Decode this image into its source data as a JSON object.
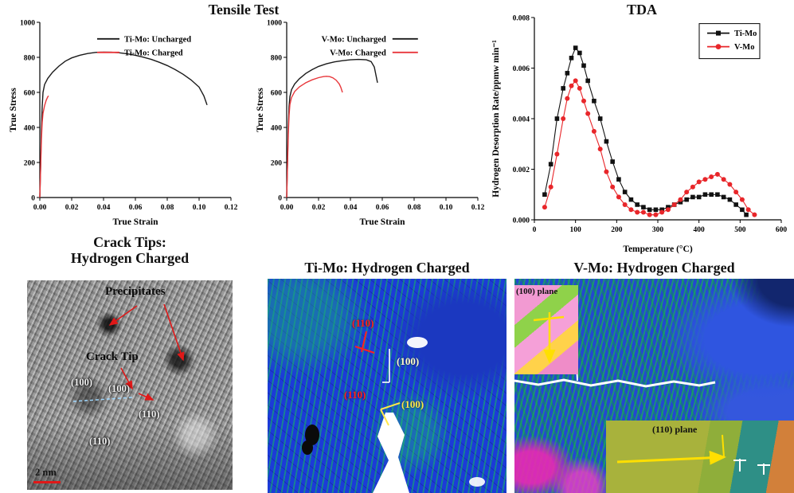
{
  "titles": {
    "tensile": "Tensile Test",
    "tda": "TDA",
    "tem_line1": "Crack Tips:",
    "tem_line2": "Hydrogen Charged",
    "timo": "Ti-Mo: Hydrogen Charged",
    "vmo": "V-Mo: Hydrogen Charged"
  },
  "panels": {
    "tem": {
      "labels": {
        "precipitates": "Precipitates",
        "crack_tip": "Crack Tip",
        "plane_100a": "(100)",
        "plane_100b": "(100)",
        "plane_110a": "(110)",
        "plane_110b": "(110)",
        "scale": "2 nm"
      }
    },
    "timo": {
      "labels": {
        "l1": "(110)",
        "l2": "(100)",
        "l3": "(110)",
        "l4": "(100)"
      }
    },
    "vmo": {
      "labels": {
        "inset1": "(100) plane",
        "inset2": "(110) plane"
      }
    }
  },
  "colors": {
    "black_series": "#1a1a1a",
    "red_series": "#e8373b",
    "tda_red": "#e8262a",
    "annotation_red": "#e01818",
    "annotation_yellow": "#ffe000"
  },
  "chart_data": [
    {
      "id": "tensile-timo",
      "type": "line",
      "xlabel": "True Strain",
      "ylabel": "True Stress",
      "xlim": [
        0,
        0.12
      ],
      "ylim": [
        0,
        1000
      ],
      "xticks": [
        0,
        0.02,
        0.04,
        0.06,
        0.08,
        0.1,
        0.12
      ],
      "xtick_labels": [
        "0.00",
        "0.02",
        "0.04",
        "0.06",
        "0.08",
        "0.10",
        "0.12"
      ],
      "yticks": [
        0,
        200,
        400,
        600,
        800,
        1000
      ],
      "ytick_labels": [
        "0",
        "200",
        "400",
        "600",
        "800",
        "1000"
      ],
      "grid": false,
      "legend_position": "top-center",
      "series": [
        {
          "name": "Ti-Mo: Uncharged",
          "color": "#1a1a1a",
          "marker": "none",
          "points": [
            [
              0,
              0
            ],
            [
              0.0005,
              180
            ],
            [
              0.001,
              380
            ],
            [
              0.0015,
              520
            ],
            [
              0.002,
              600
            ],
            [
              0.003,
              645
            ],
            [
              0.005,
              680
            ],
            [
              0.008,
              715
            ],
            [
              0.012,
              750
            ],
            [
              0.016,
              778
            ],
            [
              0.02,
              797
            ],
            [
              0.025,
              812
            ],
            [
              0.03,
              822
            ],
            [
              0.035,
              828
            ],
            [
              0.04,
              830
            ],
            [
              0.045,
              829
            ],
            [
              0.05,
              826
            ],
            [
              0.055,
              820
            ],
            [
              0.06,
              812
            ],
            [
              0.065,
              801
            ],
            [
              0.07,
              788
            ],
            [
              0.075,
              772
            ],
            [
              0.08,
              753
            ],
            [
              0.085,
              730
            ],
            [
              0.09,
              703
            ],
            [
              0.095,
              671
            ],
            [
              0.1,
              630
            ],
            [
              0.103,
              580
            ],
            [
              0.105,
              528
            ]
          ]
        },
        {
          "name": "Ti-Mo: Charged",
          "color": "#e8373b",
          "marker": "none",
          "points": [
            [
              0,
              0
            ],
            [
              0.0005,
              160
            ],
            [
              0.001,
              330
            ],
            [
              0.0015,
              430
            ],
            [
              0.002,
              480
            ],
            [
              0.003,
              525
            ],
            [
              0.004,
              555
            ],
            [
              0.005,
              575
            ],
            [
              0.0055,
              580
            ]
          ]
        }
      ]
    },
    {
      "id": "tensile-vmo",
      "type": "line",
      "xlabel": "True Strain",
      "ylabel": "True Stress",
      "xlim": [
        0,
        0.12
      ],
      "ylim": [
        0,
        1000
      ],
      "xticks": [
        0,
        0.02,
        0.04,
        0.06,
        0.08,
        0.1,
        0.12
      ],
      "xtick_labels": [
        "0.00",
        "0.02",
        "0.04",
        "0.06",
        "0.08",
        "0.10",
        "0.12"
      ],
      "yticks": [
        0,
        200,
        400,
        600,
        800,
        1000
      ],
      "ytick_labels": [
        "0",
        "200",
        "400",
        "600",
        "800",
        "1000"
      ],
      "grid": false,
      "legend_position": "top-center",
      "series": [
        {
          "name": "V-Mo: Uncharged",
          "color": "#1a1a1a",
          "marker": "none",
          "points": [
            [
              0,
              0
            ],
            [
              0.0005,
              200
            ],
            [
              0.001,
              400
            ],
            [
              0.0015,
              520
            ],
            [
              0.002,
              575
            ],
            [
              0.003,
              615
            ],
            [
              0.005,
              648
            ],
            [
              0.008,
              678
            ],
            [
              0.012,
              708
            ],
            [
              0.016,
              730
            ],
            [
              0.02,
              748
            ],
            [
              0.025,
              763
            ],
            [
              0.03,
              774
            ],
            [
              0.035,
              781
            ],
            [
              0.04,
              786
            ],
            [
              0.045,
              788
            ],
            [
              0.05,
              786
            ],
            [
              0.053,
              776
            ],
            [
              0.055,
              745
            ],
            [
              0.056,
              700
            ],
            [
              0.057,
              655
            ]
          ]
        },
        {
          "name": "V-Mo: Charged",
          "color": "#e8373b",
          "marker": "none",
          "points": [
            [
              0,
              0
            ],
            [
              0.0005,
              180
            ],
            [
              0.001,
              360
            ],
            [
              0.0015,
              470
            ],
            [
              0.002,
              530
            ],
            [
              0.003,
              570
            ],
            [
              0.005,
              605
            ],
            [
              0.008,
              632
            ],
            [
              0.012,
              655
            ],
            [
              0.016,
              672
            ],
            [
              0.02,
              684
            ],
            [
              0.023,
              690
            ],
            [
              0.025,
              692
            ],
            [
              0.027,
              690
            ],
            [
              0.029,
              683
            ],
            [
              0.031,
              670
            ],
            [
              0.033,
              648
            ],
            [
              0.034,
              628
            ],
            [
              0.035,
              600
            ]
          ]
        }
      ]
    },
    {
      "id": "tda",
      "type": "line",
      "xlabel": "Temperature (°C)",
      "ylabel": "Hydrogen Desorption Rate/ppmw min⁻¹",
      "xlim": [
        0,
        600
      ],
      "ylim": [
        0,
        0.008
      ],
      "xticks": [
        0,
        100,
        200,
        300,
        400,
        500,
        600
      ],
      "xtick_labels": [
        "0",
        "100",
        "200",
        "300",
        "400",
        "500",
        "600"
      ],
      "yticks": [
        0,
        0.002,
        0.004,
        0.006,
        0.008
      ],
      "ytick_labels": [
        "0.000",
        "0.002",
        "0.004",
        "0.006",
        "0.008"
      ],
      "grid": false,
      "legend_position": "top-right",
      "series": [
        {
          "name": "Ti-Mo",
          "color": "#111111",
          "marker": "square",
          "points": [
            [
              25,
              0.001
            ],
            [
              40,
              0.0022
            ],
            [
              55,
              0.004
            ],
            [
              70,
              0.0052
            ],
            [
              80,
              0.0058
            ],
            [
              90,
              0.0064
            ],
            [
              100,
              0.0068
            ],
            [
              110,
              0.0066
            ],
            [
              120,
              0.0061
            ],
            [
              130,
              0.0055
            ],
            [
              145,
              0.0047
            ],
            [
              160,
              0.004
            ],
            [
              175,
              0.0031
            ],
            [
              190,
              0.0023
            ],
            [
              205,
              0.0016
            ],
            [
              220,
              0.0011
            ],
            [
              235,
              0.0008
            ],
            [
              250,
              0.0006
            ],
            [
              265,
              0.0005
            ],
            [
              280,
              0.0004
            ],
            [
              295,
              0.0004
            ],
            [
              310,
              0.0004
            ],
            [
              325,
              0.0005
            ],
            [
              340,
              0.0006
            ],
            [
              355,
              0.0007
            ],
            [
              370,
              0.0008
            ],
            [
              385,
              0.0009
            ],
            [
              400,
              0.0009
            ],
            [
              415,
              0.001
            ],
            [
              430,
              0.001
            ],
            [
              445,
              0.001
            ],
            [
              460,
              0.0009
            ],
            [
              475,
              0.0008
            ],
            [
              490,
              0.0006
            ],
            [
              505,
              0.0004
            ],
            [
              515,
              0.0002
            ]
          ]
        },
        {
          "name": "V-Mo",
          "color": "#e8262a",
          "marker": "circle",
          "points": [
            [
              25,
              0.0005
            ],
            [
              40,
              0.0013
            ],
            [
              55,
              0.0026
            ],
            [
              70,
              0.004
            ],
            [
              80,
              0.0048
            ],
            [
              90,
              0.0053
            ],
            [
              100,
              0.0055
            ],
            [
              110,
              0.0052
            ],
            [
              120,
              0.0047
            ],
            [
              130,
              0.0042
            ],
            [
              145,
              0.0035
            ],
            [
              160,
              0.0028
            ],
            [
              175,
              0.0019
            ],
            [
              190,
              0.0013
            ],
            [
              205,
              0.0009
            ],
            [
              220,
              0.0006
            ],
            [
              235,
              0.0004
            ],
            [
              250,
              0.0003
            ],
            [
              265,
              0.0003
            ],
            [
              280,
              0.0002
            ],
            [
              295,
              0.0002
            ],
            [
              310,
              0.0003
            ],
            [
              325,
              0.0004
            ],
            [
              340,
              0.0006
            ],
            [
              355,
              0.0008
            ],
            [
              370,
              0.0011
            ],
            [
              385,
              0.0013
            ],
            [
              400,
              0.0015
            ],
            [
              415,
              0.0016
            ],
            [
              430,
              0.0017
            ],
            [
              445,
              0.0018
            ],
            [
              460,
              0.0016
            ],
            [
              475,
              0.0014
            ],
            [
              490,
              0.0011
            ],
            [
              505,
              0.0008
            ],
            [
              520,
              0.0004
            ],
            [
              535,
              0.0002
            ]
          ]
        }
      ]
    }
  ]
}
